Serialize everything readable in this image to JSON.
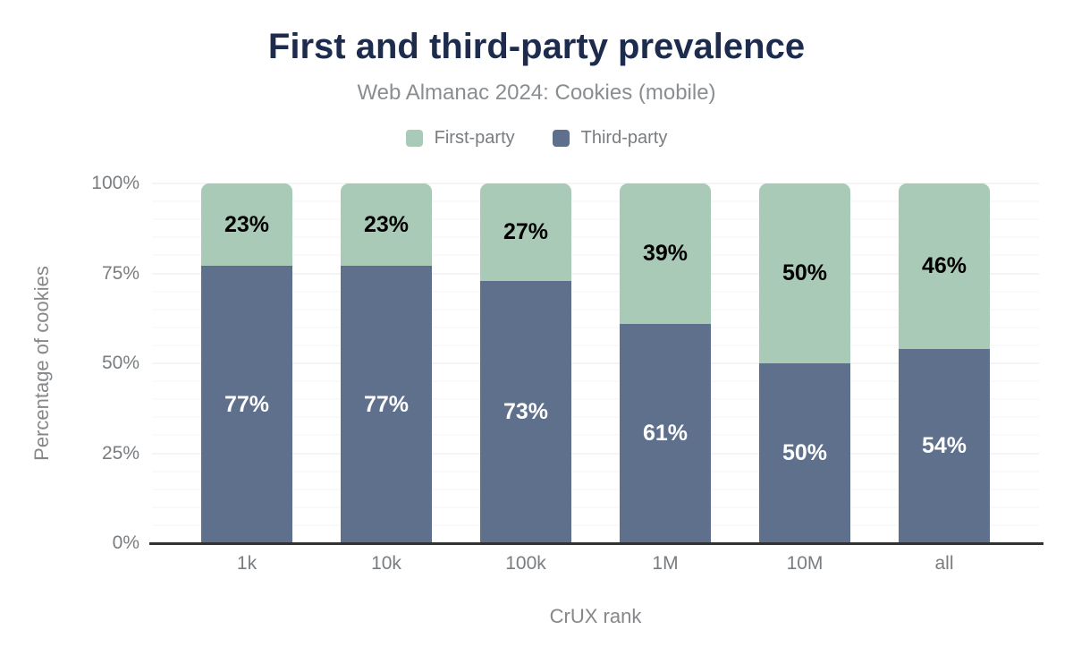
{
  "header": {
    "title": "First and third-party prevalence",
    "subtitle": "Web Almanac 2024: Cookies (mobile)"
  },
  "chart_data": {
    "type": "bar",
    "stacked": true,
    "title": "First and third-party prevalence",
    "subtitle": "Web Almanac 2024: Cookies (mobile)",
    "categories": [
      "1k",
      "10k",
      "100k",
      "1M",
      "10M",
      "all"
    ],
    "series": [
      {
        "name": "First-party",
        "color": "#a8cab6",
        "label_color": "#000000",
        "values": [
          23,
          23,
          27,
          39,
          50,
          46
        ]
      },
      {
        "name": "Third-party",
        "color": "#5f708c",
        "label_color": "#ffffff",
        "values": [
          77,
          77,
          73,
          61,
          50,
          54
        ]
      }
    ],
    "xlabel": "CrUX rank",
    "ylabel": "Percentage of cookies",
    "ylim": [
      0,
      100
    ],
    "yticks": [
      0,
      25,
      50,
      75,
      100
    ],
    "ytick_suffix": "%",
    "data_label_suffix": "%",
    "grid": {
      "on": true,
      "minor_step": 5,
      "major_step": 25
    },
    "legend_position": "top"
  },
  "colors": {
    "title": "#1d2b4d",
    "subtitle": "#8b8e90",
    "axis_text": "#797d80",
    "axis_line": "#323232",
    "background": "#ffffff"
  }
}
